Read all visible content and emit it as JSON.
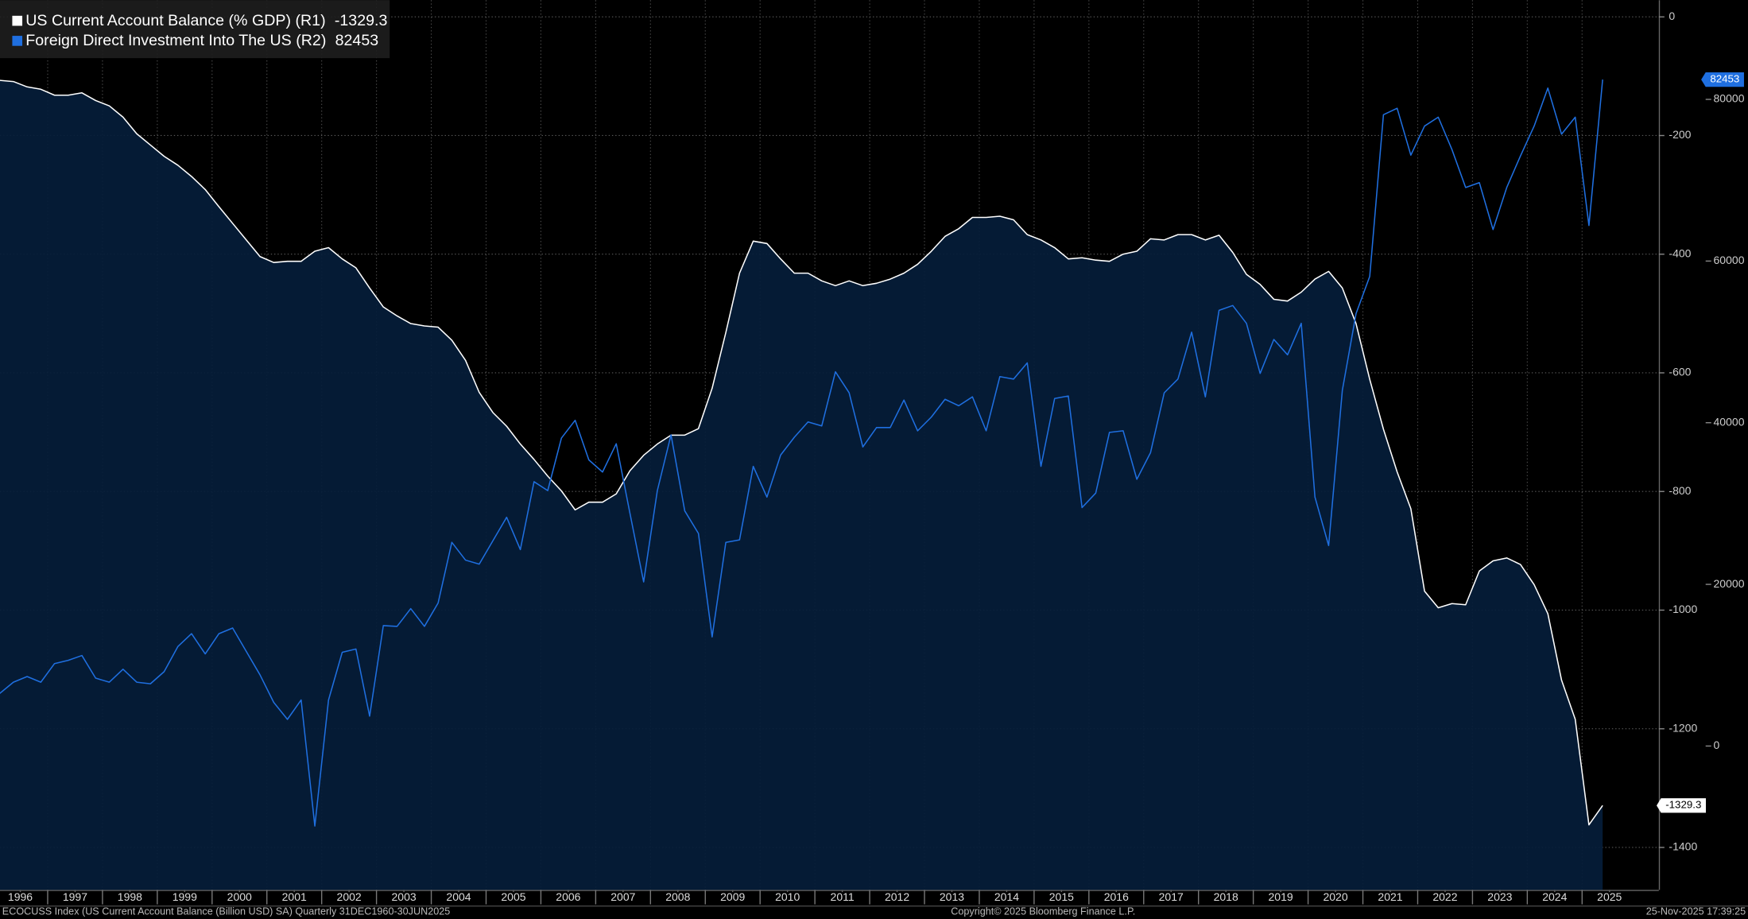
{
  "chart_data": {
    "type": "line",
    "x": [
      1996.125,
      1996.375,
      1996.625,
      1996.875,
      1997.125,
      1997.375,
      1997.625,
      1997.875,
      1998.125,
      1998.375,
      1998.625,
      1998.875,
      1999.125,
      1999.375,
      1999.625,
      1999.875,
      2000.125,
      2000.375,
      2000.625,
      2000.875,
      2001.125,
      2001.375,
      2001.625,
      2001.875,
      2002.125,
      2002.375,
      2002.625,
      2002.875,
      2003.125,
      2003.375,
      2003.625,
      2003.875,
      2004.125,
      2004.375,
      2004.625,
      2004.875,
      2005.125,
      2005.375,
      2005.625,
      2005.875,
      2006.125,
      2006.375,
      2006.625,
      2006.875,
      2007.125,
      2007.375,
      2007.625,
      2007.875,
      2008.125,
      2008.375,
      2008.625,
      2008.875,
      2009.125,
      2009.375,
      2009.625,
      2009.875,
      2010.125,
      2010.375,
      2010.625,
      2010.875,
      2011.125,
      2011.375,
      2011.625,
      2011.875,
      2012.125,
      2012.375,
      2012.625,
      2012.875,
      2013.125,
      2013.375,
      2013.625,
      2013.875,
      2014.125,
      2014.375,
      2014.625,
      2014.875,
      2015.125,
      2015.375,
      2015.625,
      2015.875,
      2016.125,
      2016.375,
      2016.625,
      2016.875,
      2017.125,
      2017.375,
      2017.625,
      2017.875,
      2018.125,
      2018.375,
      2018.625,
      2018.875,
      2019.125,
      2019.375,
      2019.625,
      2019.875,
      2020.125,
      2020.375,
      2020.625,
      2020.875,
      2021.125,
      2021.375,
      2021.625,
      2021.875,
      2022.125,
      2022.375,
      2022.625,
      2022.875,
      2023.125,
      2023.375,
      2023.625,
      2023.875,
      2024.125,
      2024.375,
      2024.625,
      2024.875,
      2025.125,
      2025.375
    ],
    "series": [
      {
        "name": "US Current Account Balance (% GDP)  (R1)",
        "color": "#ffffff",
        "fill": "#051d3a",
        "values": [
          -107,
          -109,
          -118,
          -122,
          -132,
          -132,
          -128,
          -141,
          -150,
          -169,
          -197,
          -216,
          -235,
          -250,
          -269,
          -291,
          -320,
          -348,
          -376,
          -404,
          -414,
          -412,
          -412,
          -395,
          -389,
          -408,
          -423,
          -457,
          -489,
          -504,
          -517,
          -521,
          -523,
          -545,
          -579,
          -633,
          -667,
          -690,
          -720,
          -746,
          -774,
          -799,
          -831,
          -818,
          -818,
          -804,
          -765,
          -739,
          -720,
          -705,
          -705,
          -694,
          -626,
          -532,
          -432,
          -378,
          -382,
          -408,
          -432,
          -432,
          -445,
          -453,
          -445,
          -453,
          -449,
          -442,
          -432,
          -417,
          -395,
          -370,
          -357,
          -338,
          -338,
          -336,
          -342,
          -367,
          -376,
          -389,
          -408,
          -406,
          -410,
          -412,
          -400,
          -395,
          -374,
          -376,
          -367,
          -367,
          -376,
          -368,
          -397,
          -434,
          -451,
          -476,
          -479,
          -464,
          -442,
          -429,
          -457,
          -517,
          -611,
          -695,
          -767,
          -829,
          -968,
          -996,
          -989,
          -991,
          -934,
          -917,
          -912,
          -923,
          -957,
          -1006,
          -1118,
          -1184,
          -1362,
          -1329.3
        ]
      },
      {
        "name": "Foreign Direct Investment Into The US (R2)",
        "color": "#1f6fe0",
        "axis": "y2",
        "values": [
          6500,
          7900,
          8600,
          7900,
          10200,
          10600,
          11200,
          8400,
          7900,
          9500,
          7900,
          7700,
          9200,
          12300,
          13900,
          11400,
          13900,
          14600,
          11700,
          8800,
          5400,
          3300,
          5700,
          -9900,
          5700,
          11600,
          12000,
          3700,
          14900,
          14800,
          17000,
          14800,
          17700,
          25200,
          23000,
          22500,
          25400,
          28300,
          24300,
          32700,
          31600,
          38100,
          40300,
          35400,
          33900,
          37400,
          28800,
          20300,
          31600,
          38500,
          29100,
          26300,
          13500,
          25200,
          25500,
          34600,
          30800,
          36000,
          38200,
          40100,
          39600,
          46300,
          43700,
          37000,
          39400,
          39400,
          42800,
          39000,
          40700,
          42900,
          42100,
          43200,
          39000,
          45700,
          45400,
          47400,
          34600,
          43000,
          43300,
          29500,
          31300,
          38800,
          39000,
          33000,
          36300,
          43700,
          45400,
          51200,
          43200,
          53900,
          54500,
          52300,
          46100,
          50300,
          48400,
          52300,
          30800,
          24800,
          44000,
          53500,
          58100,
          78100,
          78900,
          73100,
          76700,
          77800,
          73800,
          69100,
          69700,
          63900,
          69100,
          73000,
          76700,
          81400,
          75700,
          77800,
          64400,
          82453
        ]
      }
    ],
    "xlim": [
      1996.13,
      2026.4
    ],
    "xticks": [
      {
        "value": 1996.5,
        "label": "1996"
      },
      {
        "value": 1997.5,
        "label": "1997"
      },
      {
        "value": 1998.5,
        "label": "1998"
      },
      {
        "value": 1999.5,
        "label": "1999"
      },
      {
        "value": 2000.5,
        "label": "2000"
      },
      {
        "value": 2001.5,
        "label": "2001"
      },
      {
        "value": 2002.5,
        "label": "2002"
      },
      {
        "value": 2003.5,
        "label": "2003"
      },
      {
        "value": 2004.5,
        "label": "2004"
      },
      {
        "value": 2005.5,
        "label": "2005"
      },
      {
        "value": 2006.5,
        "label": "2006"
      },
      {
        "value": 2007.5,
        "label": "2007"
      },
      {
        "value": 2008.5,
        "label": "2008"
      },
      {
        "value": 2009.5,
        "label": "2009"
      },
      {
        "value": 2010.5,
        "label": "2010"
      },
      {
        "value": 2011.5,
        "label": "2011"
      },
      {
        "value": 2012.5,
        "label": "2012"
      },
      {
        "value": 2013.5,
        "label": "2013"
      },
      {
        "value": 2014.5,
        "label": "2014"
      },
      {
        "value": 2015.5,
        "label": "2015"
      },
      {
        "value": 2016.5,
        "label": "2016"
      },
      {
        "value": 2017.5,
        "label": "2017"
      },
      {
        "value": 2018.5,
        "label": "2018"
      },
      {
        "value": 2019.5,
        "label": "2019"
      },
      {
        "value": 2020.5,
        "label": "2020"
      },
      {
        "value": 2021.5,
        "label": "2021"
      },
      {
        "value": 2022.5,
        "label": "2022"
      },
      {
        "value": 2023.5,
        "label": "2023"
      },
      {
        "value": 2024.5,
        "label": "2024"
      },
      {
        "value": 2025.5,
        "label": "2025"
      }
    ],
    "ylim": [
      -1471.5,
      28.2
    ],
    "yticks": [
      0,
      -200,
      -400,
      -600,
      -800,
      -1000,
      -1200,
      -1400
    ],
    "y2lim": [
      -17793,
      92276
    ],
    "y2ticks": [
      80000,
      60000,
      40000,
      20000,
      0
    ],
    "grid": true,
    "legend": "top-left",
    "footer": [
      "ECOCUSS Index (US Current Account Balance (Billion USD) SA) Quarterly 31DEC1960-30JUN2025",
      "Copyright© 2025 Bloomberg Finance L.P.",
      "25-Nov-2025 17:39:25"
    ]
  }
}
